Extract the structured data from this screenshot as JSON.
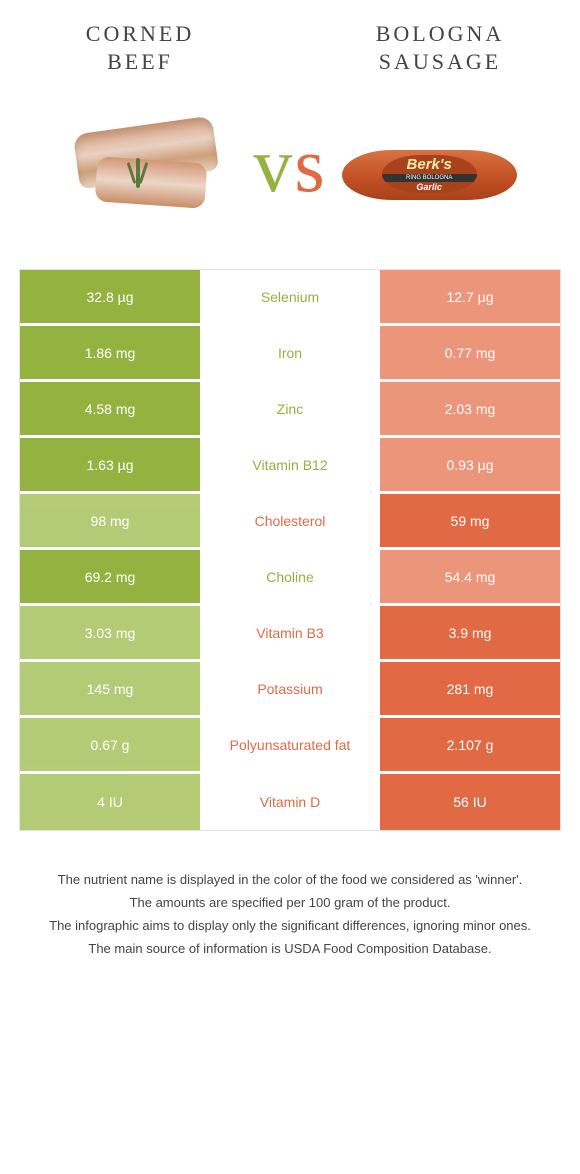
{
  "colors": {
    "left_food": "#94b23f",
    "right_food": "#e16a44",
    "left_dim": "#a8c25d",
    "right_dim": "#e88463",
    "mid_bg": "#ffffff",
    "row_border": "#ffffff",
    "vs_left": "#94b23f",
    "vs_right": "#e16a44",
    "table_border": "#e3e3e3"
  },
  "header": {
    "left_title": "Corned\nbeef",
    "right_title": "Bologna\nsausage"
  },
  "vs_label": "vs",
  "sausage_label": {
    "brand": "Berk's",
    "band": "RING BOLOGNA",
    "sub": "Garlic"
  },
  "table": {
    "rows": [
      {
        "name": "Selenium",
        "left": "32.8 µg",
        "right": "12.7 µg",
        "winner": "left"
      },
      {
        "name": "Iron",
        "left": "1.86 mg",
        "right": "0.77 mg",
        "winner": "left"
      },
      {
        "name": "Zinc",
        "left": "4.58 mg",
        "right": "2.03 mg",
        "winner": "left"
      },
      {
        "name": "Vitamin B12",
        "left": "1.63 µg",
        "right": "0.93 µg",
        "winner": "left"
      },
      {
        "name": "Cholesterol",
        "left": "98 mg",
        "right": "59 mg",
        "winner": "right"
      },
      {
        "name": "Choline",
        "left": "69.2 mg",
        "right": "54.4 mg",
        "winner": "left"
      },
      {
        "name": "Vitamin B3",
        "left": "3.03 mg",
        "right": "3.9 mg",
        "winner": "right"
      },
      {
        "name": "Potassium",
        "left": "145 mg",
        "right": "281 mg",
        "winner": "right"
      },
      {
        "name": "Polyunsaturated fat",
        "left": "0.67 g",
        "right": "2.107 g",
        "winner": "right"
      },
      {
        "name": "Vitamin D",
        "left": "4 IU",
        "right": "56 IU",
        "winner": "right"
      }
    ]
  },
  "footer": {
    "line1": "The nutrient name is displayed in the color of the food we considered as 'winner'.",
    "line2": "The amounts are specified per 100 gram of the product.",
    "line3": "The infographic aims to display only the significant differences, ignoring minor ones.",
    "line4": "The main source of information is USDA Food Composition Database."
  }
}
